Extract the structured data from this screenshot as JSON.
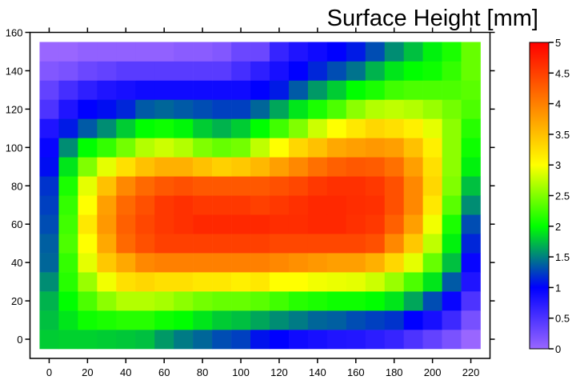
{
  "chart_data": {
    "type": "heatmap",
    "title": "Surface Height [mm]",
    "xlabel": "",
    "ylabel": "",
    "xlim": [
      -10,
      230
    ],
    "ylim": [
      -10,
      160
    ],
    "x": [
      0,
      10,
      20,
      30,
      40,
      50,
      60,
      70,
      80,
      90,
      100,
      110,
      120,
      130,
      140,
      150,
      160,
      170,
      180,
      190,
      200,
      210,
      220
    ],
    "y": [
      0,
      10,
      20,
      30,
      40,
      50,
      60,
      70,
      80,
      90,
      100,
      110,
      120,
      130,
      140,
      150
    ],
    "xticks": [
      "0",
      "20",
      "40",
      "60",
      "80",
      "100",
      "120",
      "140",
      "160",
      "180",
      "200",
      "220"
    ],
    "yticks": [
      "0",
      "20",
      "40",
      "60",
      "80",
      "100",
      "120",
      "140",
      "160"
    ],
    "z": [
      [
        1.8,
        1.82,
        1.82,
        1.8,
        1.78,
        1.75,
        1.6,
        1.48,
        1.4,
        1.3,
        1.25,
        1.07,
        1.0,
        0.9,
        0.85,
        0.8,
        0.78,
        0.72,
        0.65,
        0.5,
        0.35,
        0.2,
        0.0
      ],
      [
        1.75,
        1.9,
        2.05,
        2.1,
        2.15,
        2.15,
        2.05,
        2.0,
        1.9,
        1.8,
        1.75,
        1.65,
        1.55,
        1.48,
        1.4,
        1.37,
        1.3,
        1.25,
        1.2,
        1.0,
        0.85,
        0.6,
        0.22
      ],
      [
        1.7,
        2.0,
        2.3,
        2.55,
        2.7,
        2.7,
        2.65,
        2.55,
        2.45,
        2.4,
        2.4,
        2.35,
        2.25,
        2.15,
        2.1,
        2.05,
        2.05,
        2.0,
        1.9,
        1.65,
        1.3,
        0.95,
        0.5
      ],
      [
        1.55,
        2.15,
        2.6,
        2.95,
        3.24,
        3.31,
        3.24,
        3.24,
        3.18,
        3.18,
        3.12,
        3.18,
        3.0,
        3.0,
        2.95,
        2.92,
        2.9,
        2.8,
        2.6,
        2.3,
        1.9,
        1.35,
        0.8
      ],
      [
        1.4,
        2.2,
        2.9,
        3.43,
        3.68,
        3.93,
        4.0,
        4.0,
        4.0,
        4.0,
        4.0,
        4.0,
        3.93,
        3.87,
        3.81,
        3.75,
        3.75,
        3.62,
        3.31,
        2.9,
        2.4,
        1.75,
        0.95
      ],
      [
        1.37,
        2.3,
        3.0,
        3.68,
        4.18,
        4.37,
        4.5,
        4.5,
        4.5,
        4.5,
        4.5,
        4.5,
        4.44,
        4.44,
        4.44,
        4.44,
        4.44,
        4.37,
        3.93,
        3.43,
        2.75,
        1.95,
        1.15
      ],
      [
        1.3,
        2.25,
        3.18,
        3.81,
        4.25,
        4.44,
        4.56,
        4.62,
        4.69,
        4.69,
        4.69,
        4.69,
        4.65,
        4.65,
        4.69,
        4.69,
        4.62,
        4.56,
        4.25,
        3.75,
        2.95,
        2.1,
        1.3
      ],
      [
        1.25,
        2.2,
        3.0,
        3.75,
        4.18,
        4.37,
        4.56,
        4.62,
        4.56,
        4.56,
        4.56,
        4.5,
        4.56,
        4.62,
        4.69,
        4.69,
        4.65,
        4.62,
        4.37,
        3.93,
        3.18,
        2.35,
        1.55
      ],
      [
        1.2,
        2.1,
        2.9,
        3.49,
        3.93,
        4.18,
        4.31,
        4.37,
        4.31,
        4.31,
        4.31,
        4.31,
        4.37,
        4.44,
        4.56,
        4.62,
        4.62,
        4.56,
        4.37,
        3.93,
        3.31,
        2.5,
        1.75
      ],
      [
        1.05,
        1.9,
        2.5,
        2.9,
        3.24,
        3.49,
        3.62,
        3.62,
        3.49,
        3.37,
        3.43,
        3.56,
        3.75,
        3.93,
        4.12,
        4.25,
        4.31,
        4.28,
        4.12,
        3.75,
        3.24,
        2.55,
        1.95
      ],
      [
        0.95,
        1.55,
        2.0,
        2.2,
        2.45,
        2.7,
        2.8,
        2.7,
        2.5,
        2.4,
        2.45,
        2.75,
        3.0,
        3.31,
        3.49,
        3.68,
        3.75,
        3.81,
        3.75,
        3.49,
        3.12,
        2.55,
        2.05
      ],
      [
        0.8,
        1.1,
        1.35,
        1.55,
        1.8,
        2.0,
        2.05,
        1.97,
        1.8,
        1.7,
        1.8,
        2.0,
        2.25,
        2.5,
        2.8,
        3.0,
        3.18,
        3.31,
        3.24,
        3.12,
        2.9,
        2.55,
        2.15
      ],
      [
        0.5,
        0.8,
        1.0,
        1.05,
        1.15,
        1.35,
        1.4,
        1.35,
        1.3,
        1.25,
        1.25,
        1.4,
        1.65,
        1.9,
        2.1,
        2.3,
        2.55,
        2.7,
        2.75,
        2.7,
        2.6,
        2.45,
        2.3
      ],
      [
        0.35,
        0.55,
        0.7,
        0.8,
        0.85,
        0.9,
        0.9,
        0.9,
        0.9,
        0.9,
        0.9,
        1.0,
        1.1,
        1.35,
        1.6,
        1.8,
        2.0,
        2.1,
        2.25,
        2.3,
        2.3,
        2.3,
        2.35
      ],
      [
        0.15,
        0.2,
        0.3,
        0.35,
        0.42,
        0.42,
        0.42,
        0.42,
        0.42,
        0.42,
        0.55,
        0.7,
        0.85,
        1.0,
        1.15,
        1.3,
        1.45,
        1.7,
        1.9,
        2.0,
        2.05,
        2.2,
        2.4
      ],
      [
        0.0,
        0.0,
        0.05,
        0.05,
        0.05,
        0.05,
        0.05,
        0.1,
        0.1,
        0.15,
        0.3,
        0.3,
        0.65,
        0.8,
        0.9,
        1.0,
        1.1,
        1.3,
        1.55,
        1.75,
        1.95,
        2.1,
        2.4
      ]
    ],
    "colorbar": {
      "range": [
        0,
        5
      ],
      "ticks": [
        "0",
        "0.5",
        "1",
        "1.5",
        "2",
        "2.5",
        "3",
        "3.5",
        "4",
        "4.5",
        "5"
      ],
      "stops": [
        {
          "v": 0,
          "color": "#9966ff"
        },
        {
          "v": 1,
          "color": "#0000ff"
        },
        {
          "v": 1.5,
          "color": "#008080"
        },
        {
          "v": 2,
          "color": "#00ff00"
        },
        {
          "v": 3,
          "color": "#ffff00"
        },
        {
          "v": 5,
          "color": "#ff0000"
        }
      ]
    }
  }
}
